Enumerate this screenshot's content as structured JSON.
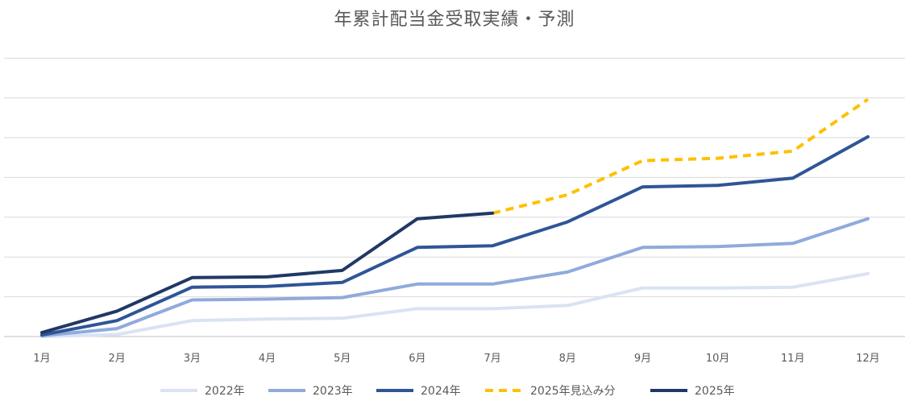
{
  "chart_data": {
    "type": "line",
    "title": "年累計配当金受取実績・予測",
    "categories": [
      "1月",
      "2月",
      "3月",
      "4月",
      "5月",
      "6月",
      "7月",
      "8月",
      "9月",
      "10月",
      "11月",
      "12月"
    ],
    "ylim": [
      0,
      7
    ],
    "grid": true,
    "legend_position": "bottom",
    "y_tick_labels_shown": false,
    "series": [
      {
        "name": "2022年",
        "color": "#dae3f3",
        "dashed": false,
        "x": [
          "1月",
          "2月",
          "3月",
          "4月",
          "5月",
          "6月",
          "7月",
          "8月",
          "9月",
          "10月",
          "11月",
          "12月"
        ],
        "values": [
          0.0,
          0.05,
          0.4,
          0.44,
          0.46,
          0.7,
          0.7,
          0.78,
          1.22,
          1.22,
          1.24,
          1.58
        ]
      },
      {
        "name": "2023年",
        "color": "#8faadc",
        "dashed": false,
        "x": [
          "1月",
          "2月",
          "3月",
          "4月",
          "5月",
          "6月",
          "7月",
          "8月",
          "9月",
          "10月",
          "11月",
          "12月"
        ],
        "values": [
          0.02,
          0.2,
          0.92,
          0.94,
          0.98,
          1.32,
          1.32,
          1.62,
          2.24,
          2.26,
          2.34,
          2.96
        ]
      },
      {
        "name": "2024年",
        "color": "#2f5597",
        "dashed": false,
        "x": [
          "1月",
          "2月",
          "3月",
          "4月",
          "5月",
          "6月",
          "7月",
          "8月",
          "9月",
          "10月",
          "11月",
          "12月"
        ],
        "values": [
          0.04,
          0.4,
          1.24,
          1.26,
          1.36,
          2.24,
          2.28,
          2.88,
          3.76,
          3.8,
          3.98,
          5.02
        ]
      },
      {
        "name": "2025年見込み分",
        "color": "#ffc000",
        "dashed": true,
        "x": [
          "7月",
          "8月",
          "9月",
          "10月",
          "11月",
          "12月"
        ],
        "values": [
          3.1,
          3.56,
          4.42,
          4.48,
          4.66,
          5.96
        ]
      },
      {
        "name": "2025年",
        "color": "#203864",
        "dashed": false,
        "x": [
          "1月",
          "2月",
          "3月",
          "4月",
          "5月",
          "6月",
          "7月"
        ],
        "values": [
          0.1,
          0.64,
          1.48,
          1.5,
          1.66,
          2.96,
          3.1
        ]
      }
    ]
  }
}
